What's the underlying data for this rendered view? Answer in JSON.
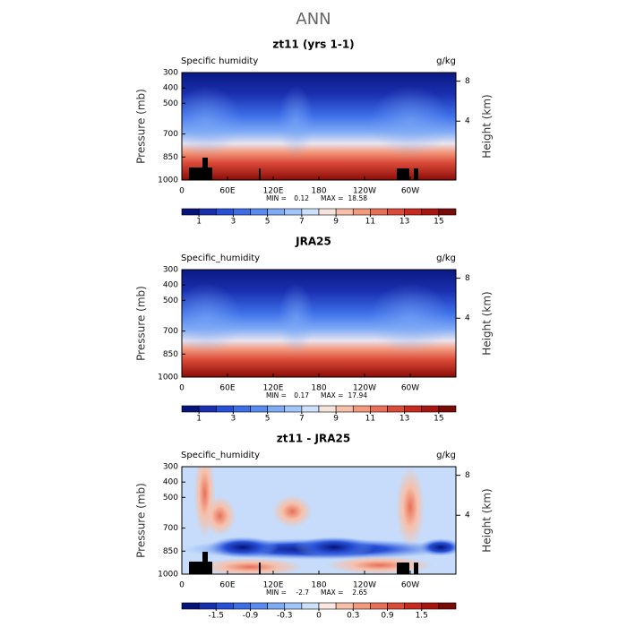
{
  "title": "ANN",
  "chart_data": [
    {
      "type": "contour",
      "title": "zt11 (yrs 1-1)",
      "variable": "Specific humidity",
      "units": "g/kg",
      "ylabel": "Pressure (mb)",
      "y2label": "Height (km)",
      "xlim": [
        0,
        360
      ],
      "xticks": [
        0,
        {
          "value": 60,
          "label": "60E"
        },
        {
          "value": 120,
          "label": "120E"
        },
        180,
        {
          "value": 240,
          "label": "120W"
        },
        {
          "value": 300,
          "label": "60W"
        }
      ],
      "ylim": [
        1000,
        300
      ],
      "yticks": [
        300,
        400,
        500,
        700,
        850,
        1000
      ],
      "y2ticks": [
        8,
        4
      ],
      "min_label": "MIN =",
      "min": 0.12,
      "max_label": "MAX =",
      "max": 18.58,
      "colorbar": {
        "levels": [
          1,
          2,
          3,
          4,
          5,
          6,
          7,
          8,
          9,
          10,
          11,
          12,
          13,
          14,
          15
        ],
        "ticks": [
          1,
          3,
          5,
          7,
          9,
          11,
          13,
          15
        ],
        "colors": [
          "#06137a",
          "#1a2fb0",
          "#2850d8",
          "#3c6ee8",
          "#5a8cf0",
          "#7eaaf6",
          "#a2c6fa",
          "#cde0fc",
          "#f6e4dc",
          "#f7c0aa",
          "#f2997e",
          "#e87058",
          "#dc4a38",
          "#c82a20",
          "#a81410",
          "#7a0a08"
        ]
      }
    },
    {
      "type": "contour",
      "title": "JRA25",
      "variable": "Specific_humidity",
      "units": "g/kg",
      "ylabel": "Pressure (mb)",
      "y2label": "Height (km)",
      "xlim": [
        0,
        360
      ],
      "xticks": [
        0,
        {
          "value": 60,
          "label": "60E"
        },
        {
          "value": 120,
          "label": "120E"
        },
        180,
        {
          "value": 240,
          "label": "120W"
        },
        {
          "value": 300,
          "label": "60W"
        }
      ],
      "ylim": [
        1000,
        300
      ],
      "yticks": [
        300,
        400,
        500,
        700,
        850,
        1000
      ],
      "y2ticks": [
        8,
        4
      ],
      "min_label": "MIN =",
      "min": 0.17,
      "max_label": "MAX =",
      "max": 17.94,
      "colorbar": {
        "levels": [
          1,
          2,
          3,
          4,
          5,
          6,
          7,
          8,
          9,
          10,
          11,
          12,
          13,
          14,
          15
        ],
        "ticks": [
          1,
          3,
          5,
          7,
          9,
          11,
          13,
          15
        ],
        "colors": [
          "#06137a",
          "#1a2fb0",
          "#2850d8",
          "#3c6ee8",
          "#5a8cf0",
          "#7eaaf6",
          "#a2c6fa",
          "#cde0fc",
          "#f6e4dc",
          "#f7c0aa",
          "#f2997e",
          "#e87058",
          "#dc4a38",
          "#c82a20",
          "#a81410",
          "#7a0a08"
        ]
      }
    },
    {
      "type": "contour",
      "title": "zt11 - JRA25",
      "variable": "Specific_humidity",
      "units": "g/kg",
      "ylabel": "Pressure (mb)",
      "y2label": "Height (km)",
      "xlim": [
        0,
        360
      ],
      "xticks": [
        0,
        {
          "value": 60,
          "label": "60E"
        },
        {
          "value": 120,
          "label": "120E"
        },
        180,
        {
          "value": 240,
          "label": "120W"
        },
        {
          "value": 300,
          "label": "60W"
        }
      ],
      "ylim": [
        1000,
        300
      ],
      "yticks": [
        300,
        400,
        500,
        700,
        850,
        1000
      ],
      "y2ticks": [
        8,
        4
      ],
      "min_label": "MIN =",
      "min": -2.7,
      "max_label": "MAX =",
      "max": 2.65,
      "colorbar": {
        "levels": [
          -1.8,
          -1.5,
          -1.2,
          -0.9,
          -0.6,
          -0.3,
          -0.1,
          0,
          0.1,
          0.3,
          0.6,
          0.9,
          1.2,
          1.5,
          1.8
        ],
        "ticks": [
          -1.5,
          -0.9,
          -0.3,
          0,
          0.3,
          0.9,
          1.5
        ],
        "colors": [
          "#06137a",
          "#1a2fb0",
          "#2850d8",
          "#3c6ee8",
          "#5a8cf0",
          "#7eaaf6",
          "#a2c6fa",
          "#cde0fc",
          "#fbe8e0",
          "#f7c0aa",
          "#f2997e",
          "#e87058",
          "#dc4a38",
          "#c82a20",
          "#a81410",
          "#7a0a08"
        ]
      }
    }
  ]
}
